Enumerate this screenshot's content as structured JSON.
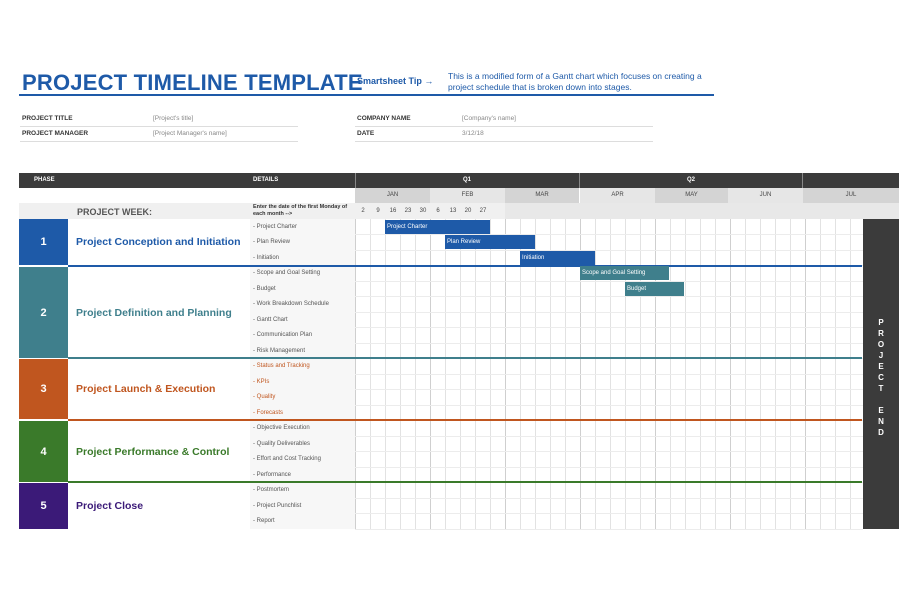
{
  "header": {
    "title": "PROJECT TIMELINE TEMPLATE",
    "tip_label": "Smartsheet Tip →",
    "tip_text": "This is a modified form of a Gantt chart which focuses on creating a project schedule that is broken down into stages."
  },
  "info": {
    "project_title_label": "PROJECT TITLE",
    "project_title_value": "[Project's title]",
    "project_manager_label": "PROJECT MANAGER",
    "project_manager_value": "[Project Manager's name]",
    "company_label": "COMPANY NAME",
    "company_value": "[Company's name]",
    "date_label": "DATE",
    "date_value": "3/12/18"
  },
  "table": {
    "phase_header": "PHASE",
    "details_header": "DETAILS",
    "quarters": [
      "Q1",
      "Q2"
    ],
    "months": [
      "JAN",
      "FEB",
      "MAR",
      "APR",
      "MAY",
      "JUN",
      "JUL"
    ],
    "weeks": [
      "2",
      "9",
      "16",
      "23",
      "30",
      "6",
      "13",
      "20",
      "27"
    ],
    "project_week_label": "PROJECT WEEK:",
    "enter_hint": "Enter the date of the first Monday of each month -->",
    "end_label": "PROJECT END"
  },
  "phases": [
    {
      "num": "1",
      "name": "Project Conception and Initiation",
      "color": "#1e5aa8",
      "details": [
        "- Project Charter",
        "- Plan Review",
        "- Initiation"
      ]
    },
    {
      "num": "2",
      "name": "Project Definition and Planning",
      "color": "#3f7f8c",
      "details": [
        "- Scope and Goal Setting",
        "- Budget",
        "- Work Breakdown Schedule",
        "- Gantt Chart",
        "- Communication Plan",
        "- Risk Management"
      ]
    },
    {
      "num": "3",
      "name": "Project Launch & Execution",
      "color": "#c0561f",
      "details": [
        "- Status and Tracking",
        "- KPIs",
        "- Quality",
        "- Forecasts"
      ]
    },
    {
      "num": "4",
      "name": "Project Performance & Control",
      "color": "#3a7a2a",
      "details": [
        "- Objective Execution",
        "- Quality Deliverables",
        "- Effort and Cost Tracking",
        "- Performance"
      ]
    },
    {
      "num": "5",
      "name": "Project Close",
      "color": "#3b1a78",
      "details": [
        "- Postmortem",
        "- Project Punchlist",
        "- Report"
      ]
    }
  ],
  "bars": [
    {
      "label": "Project Charter",
      "color": "#1e5aa8"
    },
    {
      "label": "Plan Review",
      "color": "#1e5aa8"
    },
    {
      "label": "Initiation",
      "color": "#1e5aa8"
    },
    {
      "label": "Scope and Goal Setting",
      "color": "#3f7f8c"
    },
    {
      "label": "Budget",
      "color": "#3f7f8c"
    }
  ]
}
